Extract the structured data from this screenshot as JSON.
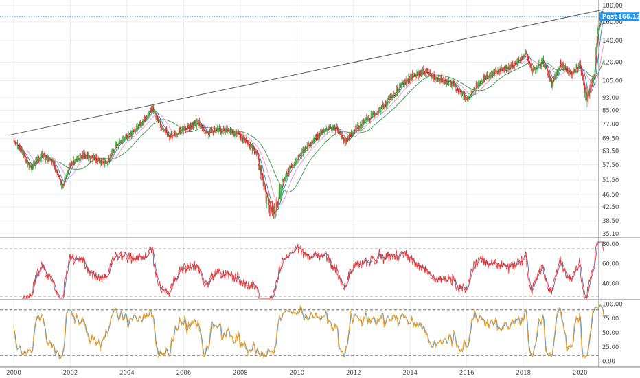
{
  "chart_data": [
    {
      "type": "candlestick",
      "panel": "price",
      "y_scale": "log",
      "ylim": [
        35.1,
        180
      ],
      "y_ticks": [
        "180.00",
        "160.00",
        "140.00",
        "120.00",
        "105.00",
        "93.00",
        "85.00",
        "77.00",
        "69.50",
        "63.50",
        "57.50",
        "51.50",
        "46.50",
        "42.50",
        "38.50",
        "35.10"
      ],
      "x_ticks": [
        "2000",
        "2002",
        "2004",
        "2006",
        "2008",
        "2010",
        "2012",
        "2014",
        "2016",
        "2018",
        "2020"
      ],
      "last_price": {
        "label": "Post",
        "value": "166.17"
      },
      "price_anchors": [
        [
          2000.0,
          68
        ],
        [
          2000.3,
          63
        ],
        [
          2000.6,
          56
        ],
        [
          2001.0,
          62
        ],
        [
          2001.4,
          58
        ],
        [
          2001.7,
          49
        ],
        [
          2002.0,
          58
        ],
        [
          2002.5,
          62
        ],
        [
          2003.0,
          59
        ],
        [
          2003.3,
          58
        ],
        [
          2003.6,
          66
        ],
        [
          2004.0,
          70
        ],
        [
          2004.5,
          78
        ],
        [
          2004.9,
          86
        ],
        [
          2005.2,
          76
        ],
        [
          2005.5,
          70
        ],
        [
          2006.0,
          74
        ],
        [
          2006.5,
          78
        ],
        [
          2006.8,
          72
        ],
        [
          2007.2,
          74
        ],
        [
          2007.6,
          73
        ],
        [
          2007.9,
          72
        ],
        [
          2008.2,
          68
        ],
        [
          2008.6,
          62
        ],
        [
          2008.8,
          50
        ],
        [
          2009.0,
          44
        ],
        [
          2009.2,
          40
        ],
        [
          2009.5,
          51
        ],
        [
          2009.8,
          57
        ],
        [
          2010.2,
          63
        ],
        [
          2010.6,
          69
        ],
        [
          2011.0,
          74
        ],
        [
          2011.4,
          75
        ],
        [
          2011.7,
          68
        ],
        [
          2012.0,
          73
        ],
        [
          2012.5,
          80
        ],
        [
          2013.0,
          86
        ],
        [
          2013.5,
          97
        ],
        [
          2014.0,
          108
        ],
        [
          2014.5,
          112
        ],
        [
          2015.0,
          106
        ],
        [
          2015.5,
          103
        ],
        [
          2016.0,
          92
        ],
        [
          2016.5,
          105
        ],
        [
          2017.0,
          112
        ],
        [
          2017.5,
          115
        ],
        [
          2017.9,
          122
        ],
        [
          2018.1,
          128
        ],
        [
          2018.3,
          112
        ],
        [
          2018.7,
          121
        ],
        [
          2019.0,
          103
        ],
        [
          2019.3,
          118
        ],
        [
          2019.7,
          110
        ],
        [
          2020.0,
          119
        ],
        [
          2020.2,
          92
        ],
        [
          2020.5,
          108
        ],
        [
          2020.6,
          145
        ],
        [
          2020.75,
          168
        ],
        [
          2020.85,
          163
        ]
      ],
      "trendline": {
        "from": [
          1999.8,
          71
        ],
        "to": [
          2020.85,
          175
        ]
      },
      "overlays": [
        {
          "name": "",
          "color": "#d32f2f",
          "length": 5
        },
        {
          "name": "",
          "color": "#2f8fd6",
          "length": 12
        },
        {
          "name": "",
          "color": "#ef9ac0",
          "length": 26
        },
        {
          "name": "",
          "color": "#3f9e4d",
          "length": 52
        }
      ],
      "colors": {
        "up": "#4caf50",
        "down": "#d32f2f",
        "wick": "#6a3030"
      }
    },
    {
      "type": "line",
      "panel": "rsi",
      "ylim": [
        25,
        82
      ],
      "y_ticks": [
        "80.00",
        "60.00",
        "40.00"
      ],
      "bands": [
        75,
        27
      ],
      "series": [
        {
          "name": "",
          "color": "#e53935"
        },
        {
          "name": "",
          "color": "#5c6bc0"
        }
      ]
    },
    {
      "type": "line",
      "panel": "stochastic",
      "ylim": [
        -3,
        103
      ],
      "y_ticks": [
        "100.00",
        "75.00",
        "50.00",
        "25.00",
        "0.00"
      ],
      "bands": [
        90,
        10
      ],
      "series": [
        {
          "name": "",
          "color": "#f5a623"
        },
        {
          "name": "",
          "color": "#4a8fd6"
        }
      ]
    }
  ],
  "colors": {
    "grid": "#e9ecef",
    "axis": "#7a7a7a",
    "price_line": "#2196f3"
  }
}
